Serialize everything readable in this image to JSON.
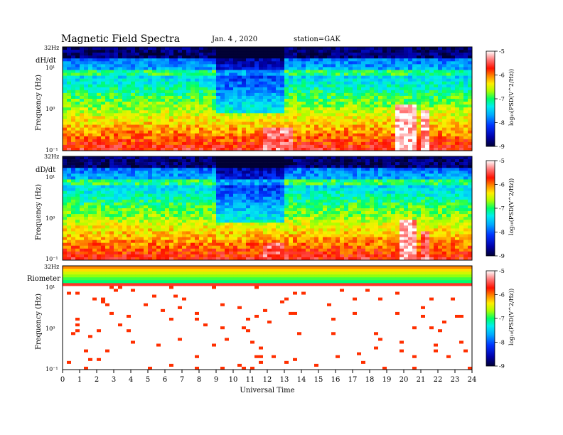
{
  "header": {
    "title": "Magnetic  Field  Spectra",
    "date": "Jan.  4  , 2020",
    "station": "station=GAK"
  },
  "colorbar": {
    "label": "log₁₀(PSD(V^2/Hz))",
    "ticks": [
      "-5",
      "-6",
      "-7",
      "-8",
      "-9"
    ],
    "range": [
      -9,
      -5
    ],
    "colors": [
      "#000066",
      "#0000cc",
      "#0044ff",
      "#0099ff",
      "#00e5e5",
      "#00ff66",
      "#aaff00",
      "#ffee00",
      "#ff9900",
      "#ff2200",
      "#ff6666",
      "#ffffff"
    ]
  },
  "chart_data": [
    {
      "type": "heatmap",
      "panel_label": "dH/dt",
      "ylabel": "Frequency  (Hz)",
      "xlabel": "",
      "y_scale": "log",
      "y_top_label": "32Hz",
      "y_ticks": [
        "10¹",
        "10⁰",
        "10⁻¹"
      ],
      "x_range": [
        0,
        24
      ],
      "y_range_hz": [
        0.1,
        32
      ],
      "features": {
        "background_level": -7.6,
        "quiet_hours": [
          10,
          12
        ],
        "low_freq_enhancements": [
          {
            "hour_start": 11.8,
            "hour_end": 13.5,
            "peak_hz": 0.35,
            "level": -5.5
          },
          {
            "hour_start": 19.6,
            "hour_end": 20.8,
            "peak_hz": 1.2,
            "level": -5.2
          },
          {
            "hour_start": 21.0,
            "hour_end": 21.6,
            "peak_hz": 0.9,
            "level": -5.3
          }
        ]
      }
    },
    {
      "type": "heatmap",
      "panel_label": "dD/dt",
      "ylabel": "Frequency  (Hz)",
      "xlabel": "",
      "y_scale": "log",
      "y_top_label": "32Hz",
      "y_ticks": [
        "10¹",
        "10⁰",
        "10⁻¹"
      ],
      "x_range": [
        0,
        24
      ],
      "y_range_hz": [
        0.1,
        32
      ],
      "features": {
        "background_level": -7.8,
        "quiet_hours": [
          10,
          12
        ],
        "low_freq_enhancements": [
          {
            "hour_start": 11.8,
            "hour_end": 13.0,
            "peak_hz": 0.25,
            "level": -5.6
          },
          {
            "hour_start": 19.7,
            "hour_end": 20.7,
            "peak_hz": 1.0,
            "level": -5.3
          },
          {
            "hour_start": 20.9,
            "hour_end": 21.5,
            "peak_hz": 0.5,
            "level": -5.5
          }
        ]
      }
    },
    {
      "type": "heatmap",
      "panel_label": "Riometer",
      "ylabel": "Frequency  (Hz)",
      "xlabel": "Universal Time",
      "y_scale": "log",
      "y_top_label": "32Hz",
      "y_ticks": [
        "10¹",
        "10⁰",
        "10⁻¹"
      ],
      "x_range": [
        0,
        24
      ],
      "y_range_hz": [
        0.1,
        32
      ],
      "x_ticks": [
        "0",
        "1",
        "2",
        "3",
        "4",
        "5",
        "6",
        "7",
        "8",
        "9",
        "10",
        "11",
        "12",
        "13",
        "14",
        "15",
        "16",
        "17",
        "18",
        "19",
        "20",
        "21",
        "22",
        "23",
        "24"
      ],
      "features": {
        "high_freq_band_hz": [
          12,
          32
        ],
        "speckle_level": -5.8
      }
    }
  ]
}
